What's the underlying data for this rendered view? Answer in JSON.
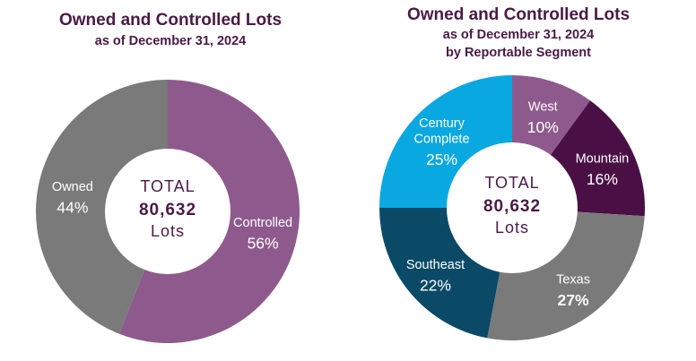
{
  "chart_data": [
    {
      "type": "pie",
      "donut": true,
      "title": "Owned and Controlled Lots",
      "subtitle": "as of December 31, 2024",
      "center": {
        "label_top": "TOTAL",
        "value": "80,632",
        "label_bottom": "Lots"
      },
      "slices": [
        {
          "name": "Controlled",
          "value": 56,
          "pct_label": "56%",
          "color": "#8e5a8d"
        },
        {
          "name": "Owned",
          "value": 44,
          "pct_label": "44%",
          "color": "#7a7a7a"
        }
      ]
    },
    {
      "type": "pie",
      "donut": true,
      "title": "Owned and Controlled Lots",
      "subtitle": "as of December 31, 2024",
      "subtitle2": "by Reportable Segment",
      "center": {
        "label_top": "TOTAL",
        "value": "80,632",
        "label_bottom": "Lots"
      },
      "slices": [
        {
          "name": "West",
          "value": 10,
          "pct_label": "10%",
          "color": "#8e5a8d"
        },
        {
          "name": "Mountain",
          "value": 16,
          "pct_label": "16%",
          "color": "#4a1045"
        },
        {
          "name": "Texas",
          "value": 27,
          "pct_label": "27%",
          "color": "#7a7a7a"
        },
        {
          "name": "Southeast",
          "value": 22,
          "pct_label": "22%",
          "color": "#0a4a66"
        },
        {
          "name": "Century\nComplete",
          "value": 25,
          "pct_label": "25%",
          "color": "#0aa8e0"
        }
      ]
    }
  ]
}
